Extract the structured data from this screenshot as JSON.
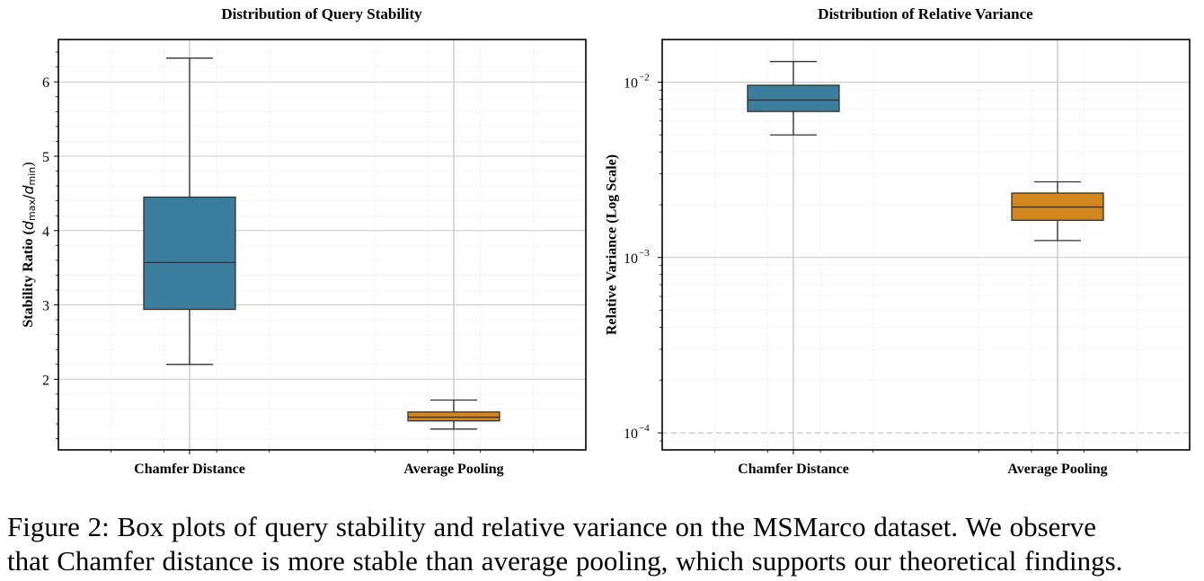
{
  "chart_data": [
    {
      "type": "box",
      "title": "Distribution of Query Stability",
      "ylabel_parts": {
        "base": "Stability Ratio (",
        "num": "d",
        "num_sub": "max",
        "slash": "/",
        "den": "d",
        "den_sub": "min",
        "close": ")"
      },
      "yscale": "linear",
      "ylim": [
        1.05,
        6.57
      ],
      "yticks": [
        2,
        3,
        4,
        5,
        6
      ],
      "ytick_labels": [
        "2",
        "3",
        "4",
        "5",
        "6"
      ],
      "grid": true,
      "categories": [
        "Chamfer Distance",
        "Average Pooling"
      ],
      "boxes": [
        {
          "name": "Chamfer Distance",
          "whislo": 2.2,
          "q1": 2.94,
          "med": 3.57,
          "q3": 4.45,
          "whishi": 6.32,
          "color": "#3b7d9c"
        },
        {
          "name": "Average Pooling",
          "whislo": 1.33,
          "q1": 1.44,
          "med": 1.49,
          "q3": 1.56,
          "whishi": 1.72,
          "color": "#d2861e"
        }
      ]
    },
    {
      "type": "box",
      "title": "Distribution of Relative Variance",
      "ylabel": "Relative Variance (Log Scale)",
      "yscale": "log",
      "ylim": [
        8e-05,
        0.0175
      ],
      "yticks": [
        0.0001,
        0.001,
        0.01
      ],
      "ytick_labels": [
        {
          "base": "10",
          "exp": "−4"
        },
        {
          "base": "10",
          "exp": "−3"
        },
        {
          "base": "10",
          "exp": "−2"
        }
      ],
      "hline": {
        "y": 0.0001,
        "style": "dashed"
      },
      "grid": true,
      "categories": [
        "Chamfer Distance",
        "Average Pooling"
      ],
      "boxes": [
        {
          "name": "Chamfer Distance",
          "whislo": 0.005,
          "q1": 0.0068,
          "med": 0.0079,
          "q3": 0.0096,
          "whishi": 0.0131,
          "color": "#3b7d9c"
        },
        {
          "name": "Average Pooling",
          "whislo": 0.00125,
          "q1": 0.00163,
          "med": 0.00194,
          "q3": 0.00233,
          "whishi": 0.0027,
          "color": "#d2861e"
        }
      ]
    }
  ],
  "caption": {
    "line1": "Figure 2: Box plots of query stability and relative variance on the MSMarco dataset. We observe",
    "line2": "that Chamfer distance is more stable than average pooling, which supports our theoretical findings."
  }
}
